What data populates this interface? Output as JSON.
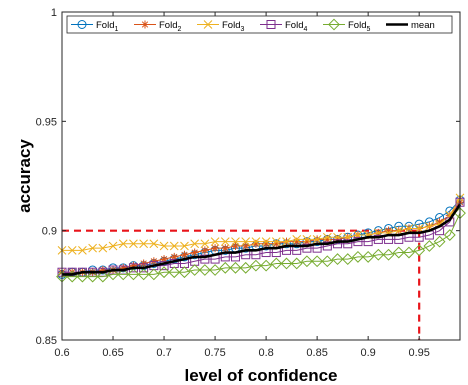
{
  "chart_data": {
    "type": "line",
    "xlabel": "level of confidence",
    "ylabel": "accuracy",
    "xlim": [
      0.6,
      0.99
    ],
    "ylim": [
      0.85,
      1.0
    ],
    "x_ticks": [
      "0.6",
      "0.65",
      "0.7",
      "0.75",
      "0.8",
      "0.85",
      "0.9",
      "0.95"
    ],
    "x_tick_values": [
      0.6,
      0.65,
      0.7,
      0.75,
      0.8,
      0.85,
      0.9,
      0.95
    ],
    "y_ticks": [
      "0.85",
      "0.9",
      "0.95",
      "1"
    ],
    "y_tick_values": [
      0.85,
      0.9,
      0.95,
      1.0
    ],
    "grid": false,
    "legend_position": "top",
    "x": [
      0.6,
      0.61,
      0.62,
      0.63,
      0.64,
      0.65,
      0.66,
      0.67,
      0.68,
      0.69,
      0.7,
      0.71,
      0.72,
      0.73,
      0.74,
      0.75,
      0.76,
      0.77,
      0.78,
      0.79,
      0.8,
      0.81,
      0.82,
      0.83,
      0.84,
      0.85,
      0.86,
      0.87,
      0.88,
      0.89,
      0.9,
      0.91,
      0.92,
      0.93,
      0.94,
      0.95,
      0.96,
      0.97,
      0.98,
      0.99
    ],
    "series": [
      {
        "name": "Fold",
        "sub": "1",
        "color": "#0072BD",
        "marker": "circle",
        "values": [
          0.88,
          0.881,
          0.881,
          0.882,
          0.882,
          0.883,
          0.883,
          0.884,
          0.884,
          0.885,
          0.886,
          0.887,
          0.888,
          0.889,
          0.89,
          0.891,
          0.891,
          0.892,
          0.892,
          0.893,
          0.893,
          0.894,
          0.894,
          0.894,
          0.895,
          0.895,
          0.896,
          0.896,
          0.897,
          0.898,
          0.899,
          0.9,
          0.901,
          0.902,
          0.902,
          0.903,
          0.904,
          0.906,
          0.909,
          0.914
        ]
      },
      {
        "name": "Fold",
        "sub": "2",
        "color": "#D95319",
        "marker": "asterisk",
        "values": [
          0.881,
          0.881,
          0.881,
          0.881,
          0.882,
          0.882,
          0.883,
          0.884,
          0.885,
          0.886,
          0.887,
          0.888,
          0.889,
          0.89,
          0.891,
          0.892,
          0.892,
          0.893,
          0.893,
          0.894,
          0.894,
          0.894,
          0.895,
          0.895,
          0.895,
          0.896,
          0.896,
          0.896,
          0.897,
          0.898,
          0.898,
          0.899,
          0.9,
          0.9,
          0.901,
          0.901,
          0.902,
          0.904,
          0.907,
          0.913
        ]
      },
      {
        "name": "Fold",
        "sub": "3",
        "color": "#EDB120",
        "marker": "cross",
        "values": [
          0.891,
          0.891,
          0.891,
          0.892,
          0.892,
          0.893,
          0.894,
          0.894,
          0.894,
          0.894,
          0.893,
          0.893,
          0.893,
          0.894,
          0.894,
          0.895,
          0.895,
          0.895,
          0.895,
          0.895,
          0.895,
          0.895,
          0.895,
          0.896,
          0.896,
          0.896,
          0.897,
          0.897,
          0.897,
          0.898,
          0.898,
          0.899,
          0.899,
          0.9,
          0.901,
          0.901,
          0.902,
          0.903,
          0.907,
          0.915
        ]
      },
      {
        "name": "Fold",
        "sub": "4",
        "color": "#7E2F8E",
        "marker": "square",
        "values": [
          0.881,
          0.881,
          0.881,
          0.881,
          0.881,
          0.882,
          0.882,
          0.883,
          0.883,
          0.884,
          0.884,
          0.885,
          0.885,
          0.886,
          0.887,
          0.887,
          0.888,
          0.888,
          0.889,
          0.889,
          0.89,
          0.89,
          0.891,
          0.891,
          0.892,
          0.892,
          0.893,
          0.894,
          0.894,
          0.895,
          0.895,
          0.896,
          0.896,
          0.896,
          0.897,
          0.897,
          0.898,
          0.9,
          0.904,
          0.913
        ]
      },
      {
        "name": "Fold",
        "sub": "5",
        "color": "#77AC30",
        "marker": "diamond",
        "values": [
          0.879,
          0.879,
          0.879,
          0.879,
          0.879,
          0.88,
          0.88,
          0.88,
          0.88,
          0.88,
          0.881,
          0.881,
          0.881,
          0.882,
          0.882,
          0.882,
          0.883,
          0.883,
          0.883,
          0.884,
          0.884,
          0.885,
          0.885,
          0.885,
          0.886,
          0.886,
          0.886,
          0.887,
          0.887,
          0.888,
          0.888,
          0.889,
          0.889,
          0.89,
          0.89,
          0.891,
          0.893,
          0.895,
          0.898,
          0.908
        ]
      },
      {
        "name": "mean",
        "sub": "",
        "color": "#000000",
        "marker": "none",
        "values": [
          0.88,
          0.88,
          0.881,
          0.881,
          0.881,
          0.882,
          0.882,
          0.883,
          0.883,
          0.884,
          0.885,
          0.886,
          0.887,
          0.888,
          0.888,
          0.889,
          0.89,
          0.89,
          0.891,
          0.891,
          0.892,
          0.892,
          0.893,
          0.893,
          0.893,
          0.894,
          0.894,
          0.895,
          0.895,
          0.896,
          0.897,
          0.897,
          0.898,
          0.898,
          0.899,
          0.899,
          0.9,
          0.902,
          0.905,
          0.912
        ]
      }
    ],
    "reference_lines": {
      "color": "#E8141A",
      "horizontal_y": 0.9,
      "horizontal_x_end": 0.95,
      "vertical_x": 0.95,
      "vertical_y_end": 0.9
    }
  }
}
